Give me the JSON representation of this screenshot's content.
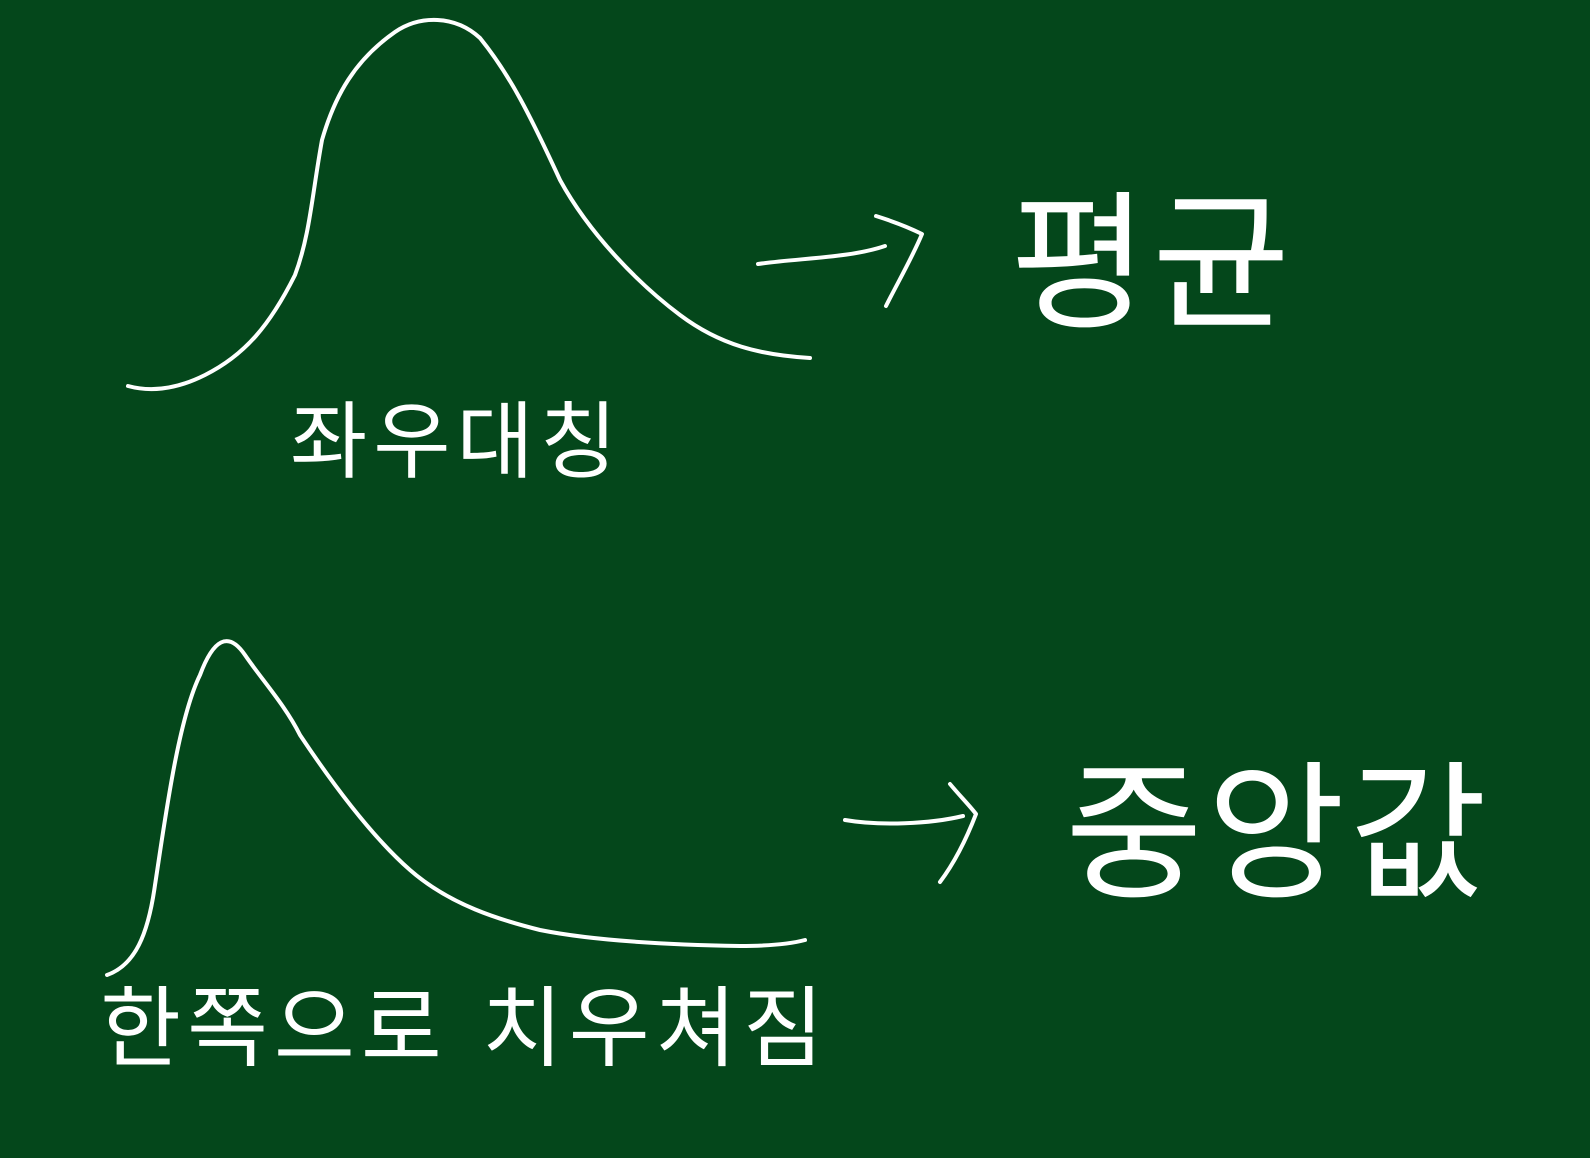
{
  "board": {
    "background_color": "#04471b",
    "chalk_color": "#ffffff"
  },
  "panels": [
    {
      "curve_shape": "symmetric-bell-curve",
      "curve_label": "좌우대칭",
      "result": "평균"
    },
    {
      "curve_shape": "right-skewed-curve",
      "curve_label": "한쪽으로 치우쳐짐",
      "result": "중앙값"
    }
  ]
}
